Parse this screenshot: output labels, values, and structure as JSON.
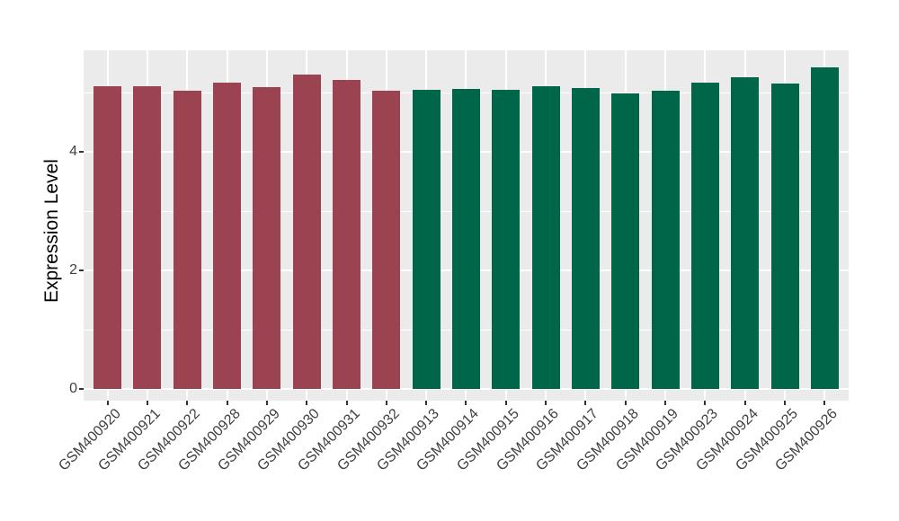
{
  "chart_data": {
    "type": "bar",
    "title": "",
    "xlabel": "",
    "ylabel": "Expression Level",
    "categories": [
      "GSM400920",
      "GSM400921",
      "GSM400922",
      "GSM400928",
      "GSM400929",
      "GSM400930",
      "GSM400931",
      "GSM400932",
      "GSM400913",
      "GSM400914",
      "GSM400915",
      "GSM400916",
      "GSM400917",
      "GSM400918",
      "GSM400919",
      "GSM400923",
      "GSM400924",
      "GSM400925",
      "GSM400926"
    ],
    "values": [
      5.1,
      5.11,
      5.03,
      5.17,
      5.09,
      5.31,
      5.21,
      5.03,
      5.05,
      5.06,
      5.05,
      5.11,
      5.08,
      4.98,
      5.03,
      5.16,
      5.26,
      5.15,
      5.43
    ],
    "bar_colors": [
      "#9C4352",
      "#9C4352",
      "#9C4352",
      "#9C4352",
      "#9C4352",
      "#9C4352",
      "#9C4352",
      "#9C4352",
      "#006649",
      "#006649",
      "#006649",
      "#006649",
      "#006649",
      "#006649",
      "#006649",
      "#006649",
      "#006649",
      "#006649",
      "#006649"
    ],
    "group_colors": {
      "group1": "#9C4352",
      "group2": "#006649"
    },
    "yticks": [
      0,
      2,
      4
    ],
    "yticks_minor": [
      1,
      3,
      5
    ],
    "ylim": [
      0,
      5.7
    ],
    "grid": true,
    "legend_position": "none",
    "panel_background": "#EBEBEB",
    "grid_color": "#FFFFFF"
  }
}
